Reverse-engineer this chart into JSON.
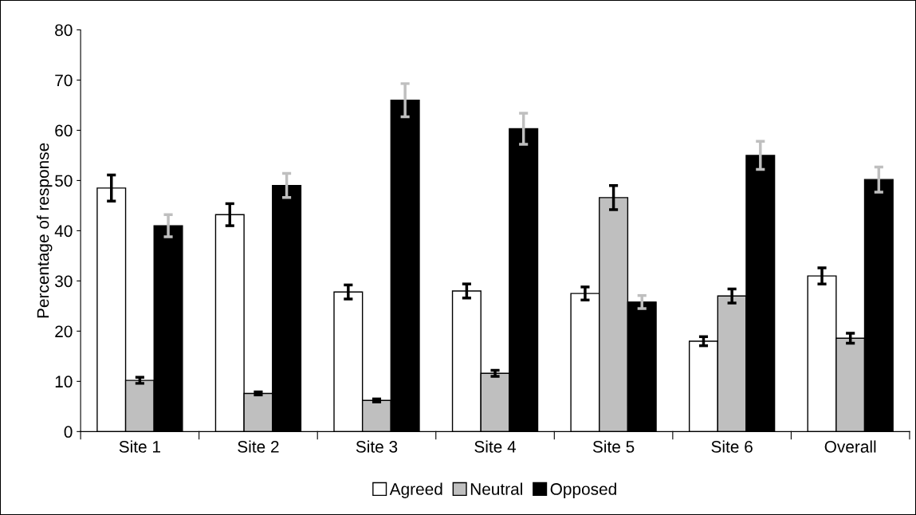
{
  "chart_data": {
    "type": "bar",
    "ylabel": "Percentage of response",
    "categories": [
      "Site 1",
      "Site 2",
      "Site 3",
      "Site 4",
      "Site 5",
      "Site 6",
      "Overall"
    ],
    "series": [
      {
        "name": "Agreed",
        "color": "#ffffff",
        "values": [
          48.5,
          43.2,
          27.8,
          28.0,
          27.5,
          18.0,
          31.0
        ],
        "errors": [
          2.6,
          2.2,
          1.4,
          1.4,
          1.3,
          0.9,
          1.6
        ]
      },
      {
        "name": "Neutral",
        "color": "#bfbfbf",
        "values": [
          10.2,
          7.6,
          6.2,
          11.6,
          46.6,
          27.0,
          18.6
        ],
        "errors": [
          0.6,
          0.3,
          0.3,
          0.6,
          2.4,
          1.4,
          1.0
        ]
      },
      {
        "name": "Opposed",
        "color": "#000000",
        "values": [
          41.0,
          49.0,
          66.0,
          60.3,
          25.8,
          55.0,
          50.2
        ],
        "errors": [
          2.2,
          2.4,
          3.3,
          3.1,
          1.3,
          2.8,
          2.5
        ]
      }
    ],
    "ylim": [
      0,
      80
    ],
    "yticks": [
      0,
      10,
      20,
      30,
      40,
      50,
      60,
      70,
      80
    ],
    "grid": false,
    "legend": "bottom"
  }
}
